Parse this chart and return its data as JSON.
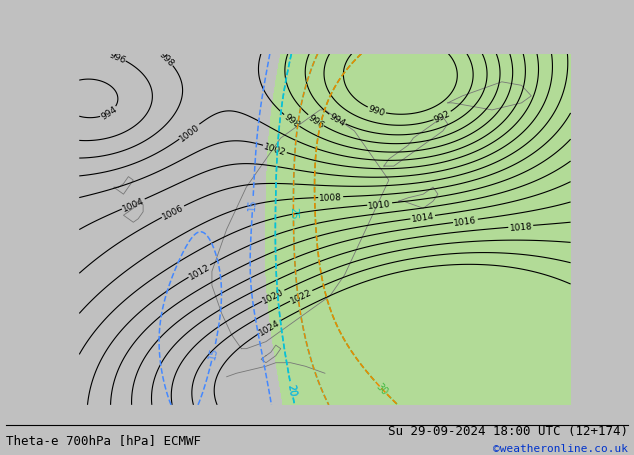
{
  "title_left": "Theta-e 700hPa [hPa] ECMWF",
  "title_right": "Su 29-09-2024 18:00 UTC (12+174)",
  "credit": "©weatheronline.co.uk",
  "footer_fontsize": 9,
  "pressure_levels": [
    990,
    992,
    994,
    996,
    998,
    1000,
    1002,
    1004,
    1006,
    1008,
    1010,
    1012,
    1014,
    1016,
    1018,
    1020,
    1022,
    1024
  ],
  "theta_levels_blue": [
    15,
    20
  ],
  "theta_levels_cyan": [
    20,
    25
  ],
  "theta_levels_green": [
    30
  ],
  "theta_levels_orange": [
    25,
    30
  ],
  "bg_color": "#d4d4d4",
  "land_color": "#d4d4d4",
  "green_fill": "#b0e090",
  "contour_black": "#000000",
  "contour_blue": "#4488ff",
  "contour_cyan": "#00cccc",
  "contour_green_left": "#44bb44",
  "contour_orange": "#ee8800"
}
